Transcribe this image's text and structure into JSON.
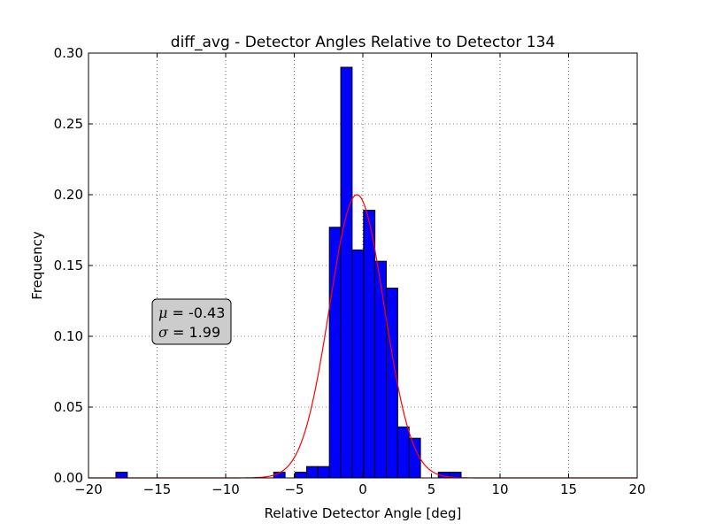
{
  "chart_data": {
    "type": "bar",
    "title": "diff_avg - Detector Angles Relative to Detector 134",
    "xlabel": "Relative Detector Angle [deg]",
    "ylabel": "Frequency",
    "xlim": [
      -20,
      20
    ],
    "ylim": [
      0,
      0.3
    ],
    "xticks": [
      -20,
      -15,
      -10,
      -5,
      0,
      5,
      10,
      15,
      20
    ],
    "xtick_labels": [
      "−20",
      "−15",
      "−10",
      "−5",
      "0",
      "5",
      "10",
      "15",
      "20"
    ],
    "yticks": [
      0,
      0.05,
      0.1,
      0.15,
      0.2,
      0.25,
      0.3
    ],
    "ytick_labels": [
      "0.00",
      "0.05",
      "0.10",
      "0.15",
      "0.20",
      "0.25",
      "0.30"
    ],
    "grid": true,
    "bin_width": 0.83,
    "bins": [
      {
        "x0": -18.0,
        "value": 0.004
      },
      {
        "x0": -6.5,
        "value": 0.004
      },
      {
        "x0": -4.93,
        "value": 0.004
      },
      {
        "x0": -4.1,
        "value": 0.008
      },
      {
        "x0": -3.27,
        "value": 0.008
      },
      {
        "x0": -2.44,
        "value": 0.177
      },
      {
        "x0": -1.61,
        "value": 0.29
      },
      {
        "x0": -0.78,
        "value": 0.161
      },
      {
        "x0": 0.05,
        "value": 0.189
      },
      {
        "x0": 0.88,
        "value": 0.153
      },
      {
        "x0": 1.71,
        "value": 0.134
      },
      {
        "x0": 2.54,
        "value": 0.036
      },
      {
        "x0": 3.37,
        "value": 0.028
      },
      {
        "x0": 5.5,
        "value": 0.004
      },
      {
        "x0": 6.33,
        "value": 0.004
      }
    ],
    "fit": {
      "type": "gaussian",
      "mu": -0.43,
      "sigma": 1.99,
      "peak": 0.2,
      "color": "#ff0000"
    },
    "bar_color": "#0000ff",
    "annotation": {
      "mu_symbol": "μ",
      "mu_text": " = -0.43",
      "sigma_symbol": "σ",
      "sigma_text": " = 1.99",
      "placement": "middle-left",
      "box_color": "#cccccc"
    }
  }
}
